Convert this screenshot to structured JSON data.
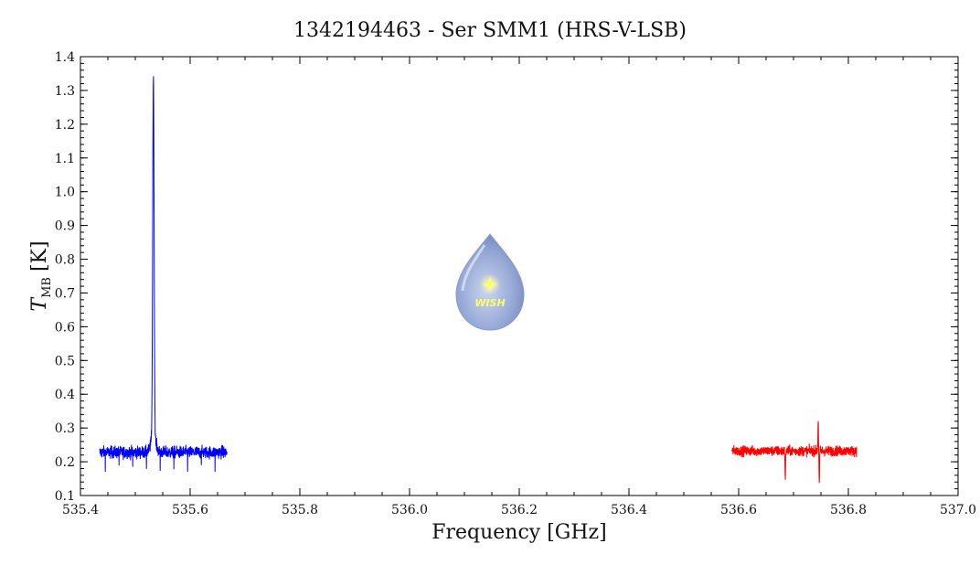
{
  "chart_data": {
    "type": "line",
    "title": "1342194463 - Ser SMM1 (HRS-V-LSB)",
    "xlabel": "Frequency [GHz]",
    "ylabel_main": "T",
    "ylabel_sub": "MB",
    "ylabel_unit": "[K]",
    "xlim": [
      535.4,
      537.0
    ],
    "ylim": [
      0.1,
      1.4
    ],
    "x_ticks": [
      "535.4",
      "535.6",
      "535.8",
      "536.0",
      "536.2",
      "536.4",
      "536.6",
      "536.8",
      "537.0"
    ],
    "y_ticks": [
      "0.1",
      "0.2",
      "0.3",
      "0.4",
      "0.5",
      "0.6",
      "0.7",
      "0.8",
      "0.9",
      "1.0",
      "1.1",
      "1.2",
      "1.3",
      "1.4"
    ],
    "grid": false,
    "series": [
      {
        "color": "#0000ff",
        "x_range": [
          535.435,
          535.667
        ],
        "baseline": 0.228,
        "noise": 0.018,
        "peak": {
          "x": 535.533,
          "y": 1.29
        },
        "min": 0.17,
        "max_noise": 0.29
      },
      {
        "color": "#ff0000",
        "x_range": [
          536.588,
          536.815
        ],
        "baseline": 0.232,
        "noise": 0.015,
        "features": [
          {
            "x": 536.685,
            "y": 0.145
          },
          {
            "x": 536.745,
            "y": 0.325
          },
          {
            "x": 536.747,
            "y": 0.13
          }
        ]
      }
    ]
  },
  "logo": {
    "text": "WISH",
    "name": "wish-logo"
  }
}
